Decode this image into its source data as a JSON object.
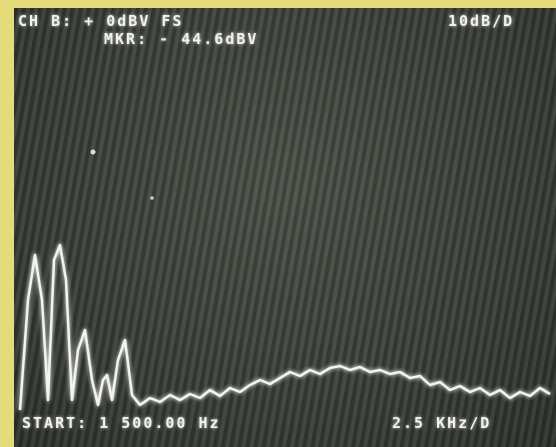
{
  "header": {
    "channel": "CH B: + 0dBV FS",
    "scale": "10dB/D",
    "marker": "MKR: - 44.6dBV"
  },
  "footer": {
    "start": "START: 1 500.00 Hz",
    "span": "2.5 KHz/D"
  }
}
